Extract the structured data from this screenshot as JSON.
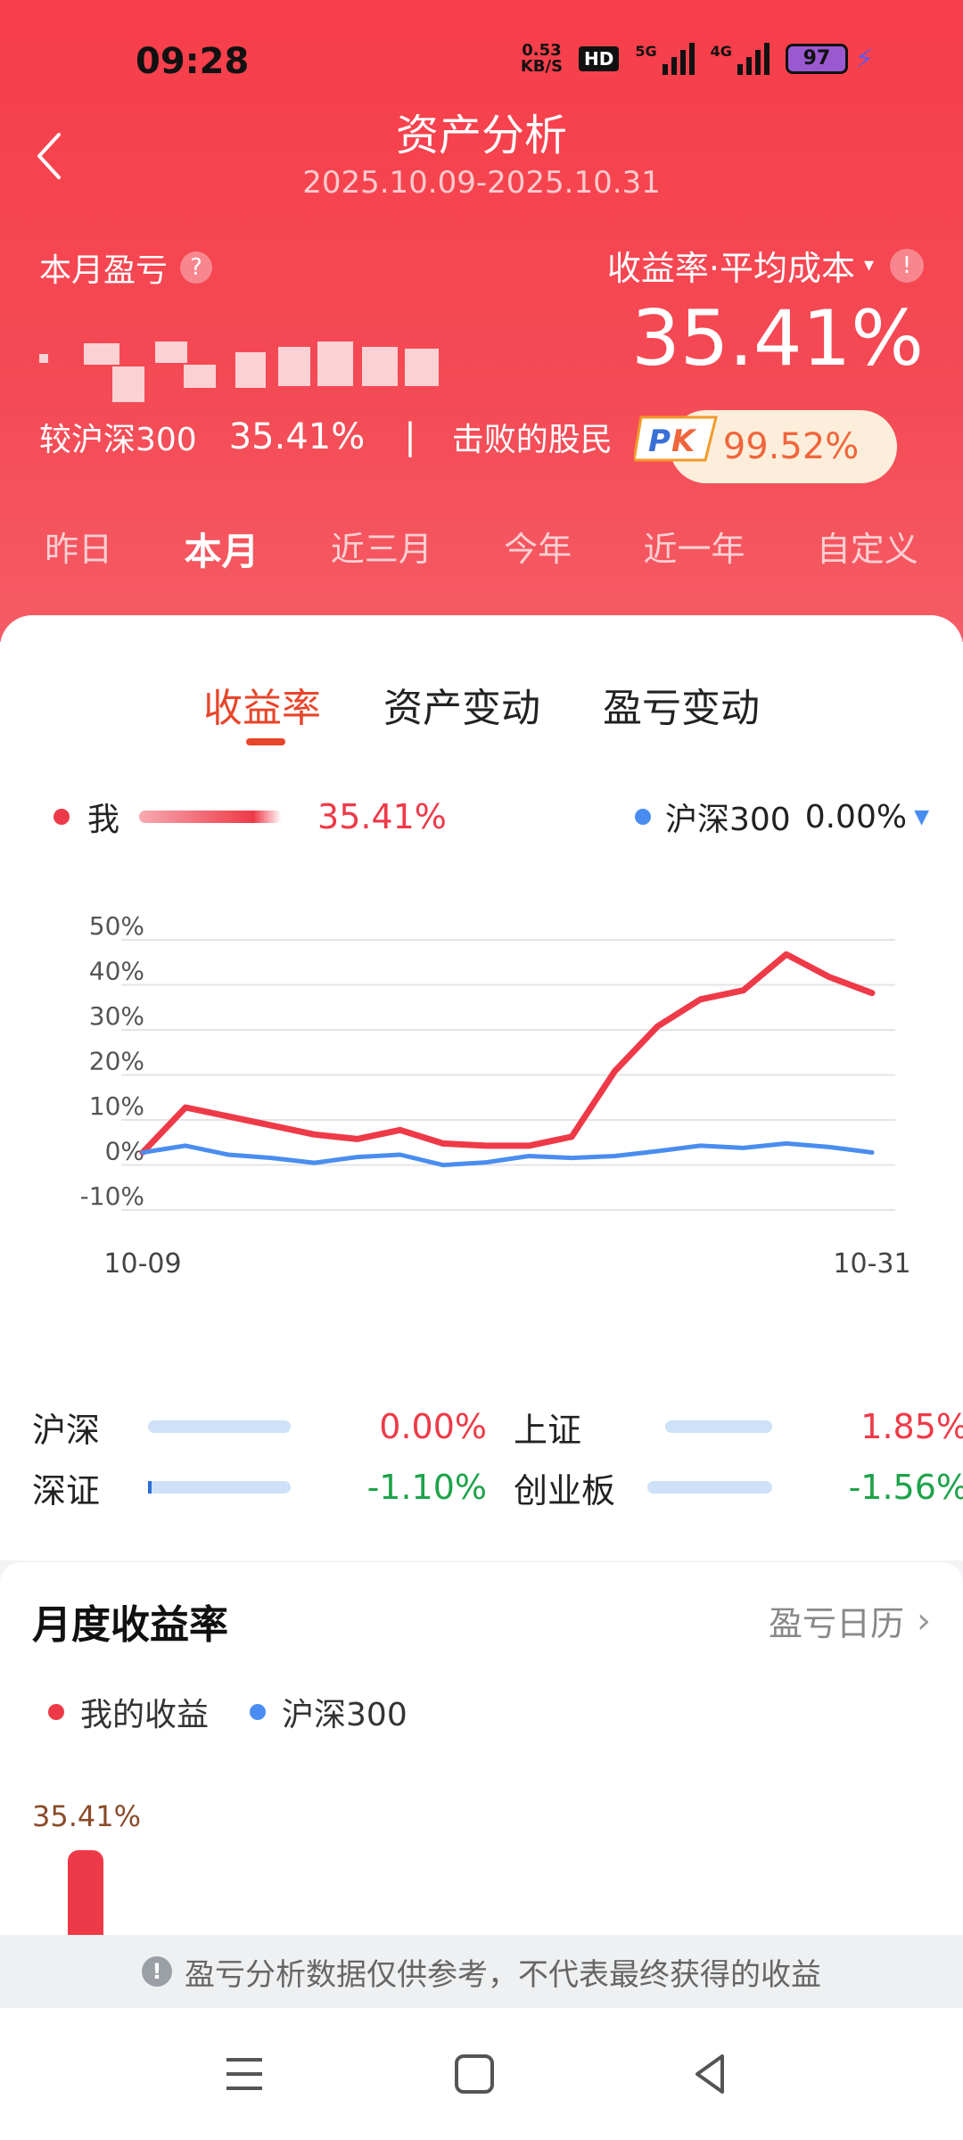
{
  "status_bar": {
    "time": "09:28",
    "net_speed_value": "0.53",
    "net_speed_unit": "KB/S",
    "hd_label": "HD",
    "signal1_label": "5G",
    "signal2_label": "4G",
    "battery": "97",
    "charging": true
  },
  "header": {
    "title": "资产分析",
    "date_range": "2025.10.09-2025.10.31",
    "month_pnl_label": "本月盈亏",
    "metric_label": "收益率·平均成本",
    "return_rate": "35.41%",
    "compare_label": "较沪深300",
    "compare_value": "35.41%",
    "divider": "|",
    "beat_label": "击败的股民",
    "pk_icon": "pk-badge",
    "beat_value": "99.52%"
  },
  "period_tabs": [
    {
      "label": "昨日",
      "active": false
    },
    {
      "label": "本月",
      "active": true
    },
    {
      "label": "近三月",
      "active": false
    },
    {
      "label": "今年",
      "active": false
    },
    {
      "label": "近一年",
      "active": false
    },
    {
      "label": "自定义",
      "active": false
    }
  ],
  "chart_tabs": [
    {
      "label": "收益率",
      "active": true
    },
    {
      "label": "资产变动",
      "active": false
    },
    {
      "label": "盈亏变动",
      "active": false
    }
  ],
  "legend": {
    "me_label": "我",
    "me_value": "35.41%",
    "benchmark_label": "沪深300",
    "benchmark_value": "0.00%"
  },
  "chart_data": {
    "type": "line",
    "x_start_label": "10-09",
    "x_end_label": "10-31",
    "yticks": [
      "50%",
      "40%",
      "30%",
      "20%",
      "10%",
      "0%",
      "-10%"
    ],
    "ylim": [
      -10,
      50
    ],
    "grid": true,
    "series": [
      {
        "name": "我",
        "color": "#ee3a48",
        "values": [
          0,
          10,
          8,
          6,
          4,
          3,
          5,
          2,
          1.5,
          1.5,
          3.5,
          18,
          28,
          34,
          36,
          44,
          39,
          35.41
        ]
      },
      {
        "name": "沪深300",
        "color": "#4a8df0",
        "values": [
          0,
          1.5,
          -0.5,
          -1.2,
          -2.3,
          -1,
          -0.5,
          -2.8,
          -2.2,
          -0.8,
          -1.2,
          -0.8,
          0.3,
          1.5,
          1,
          2,
          1.2,
          0
        ]
      }
    ]
  },
  "indices": [
    {
      "name": "沪深",
      "value": "0.00%",
      "color": "red"
    },
    {
      "name": "上证",
      "value": "1.85%",
      "color": "red"
    },
    {
      "name": "深证",
      "value": "-1.10%",
      "color": "green"
    },
    {
      "name": "创业板",
      "value": "-1.56%",
      "color": "green"
    }
  ],
  "monthly": {
    "title": "月度收益率",
    "calendar_link": "盈亏日历",
    "legend_me": "我的收益",
    "legend_benchmark": "沪深300",
    "bar_value": "35.41%",
    "bar_fraction": 0.3541
  },
  "disclaimer": "盈亏分析数据仅供参考，不代表最终获得的收益",
  "colors": {
    "accent": "#f73e4a",
    "me": "#ee3a48",
    "benchmark": "#4a8df0",
    "active_tab": "#e8452a",
    "positive": "#ee3a48",
    "negative": "#1ea34a"
  }
}
